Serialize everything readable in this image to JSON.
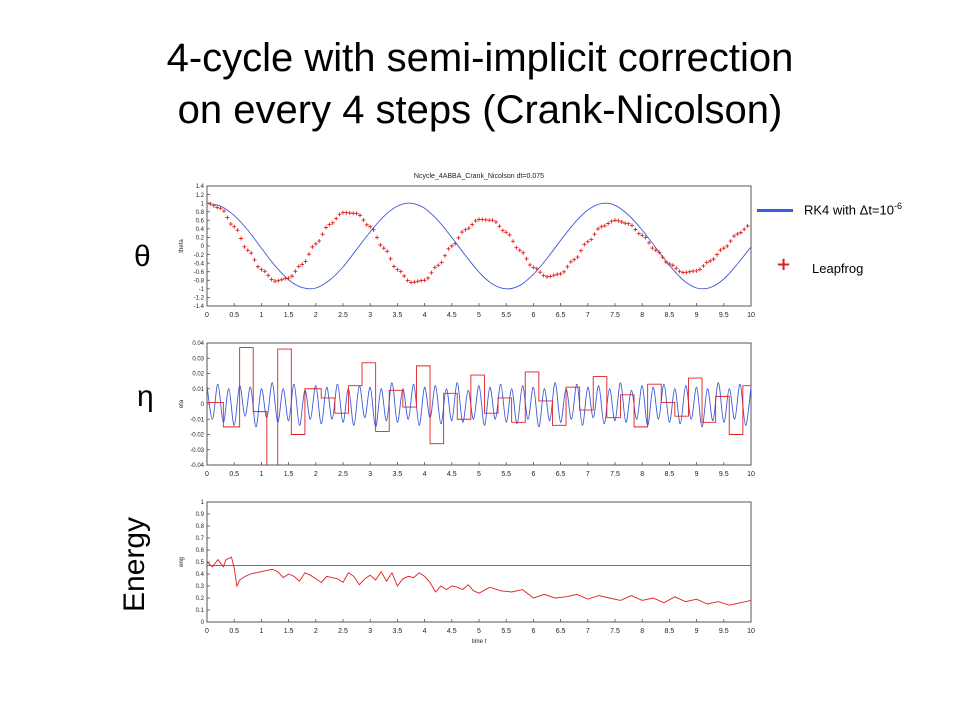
{
  "slide": {
    "title_line1": "4-cycle with semi-implicit correction",
    "title_line2": "on every 4 steps (Crank-Nicolson)",
    "label_theta": "θ",
    "label_eta": "η",
    "label_energy": "Energy"
  },
  "legend": {
    "rk4_text": "RK4 with Δt=10",
    "rk4_exponent": "-6",
    "leapfrog_text": "Leapfrog",
    "rk4_color": "#3d5ad8",
    "leapfrog_color": "#e02020"
  },
  "chart_data": [
    {
      "type": "line",
      "title": "Ncycle_4ABBA_Crank_Nicolson dt=0.075",
      "ylabel": "theta",
      "xlim": [
        0,
        10
      ],
      "ylim": [
        -1.4,
        1.4
      ],
      "xticks": [
        "0",
        "0.5",
        "1",
        "1.5",
        "2",
        "2.5",
        "3",
        "3.5",
        "4",
        "4.5",
        "5",
        "5.5",
        "6",
        "6.5",
        "7",
        "7.5",
        "8",
        "8.5",
        "9",
        "9.5",
        "10"
      ],
      "yticks": [
        "1.4",
        "1.2",
        "1",
        "0.8",
        "0.6",
        "0.4",
        "0.2",
        "0",
        "-0.2",
        "-0.4",
        "-0.6",
        "-0.8",
        "-1",
        "-1.2",
        "-1.4"
      ],
      "series": [
        {
          "name": "RK4 with Δt=10-6",
          "style": "line",
          "color": "#3d5ad8",
          "x": [
            0,
            0.25,
            0.5,
            0.75,
            1,
            1.25,
            1.5,
            1.75,
            2,
            2.25,
            2.5,
            2.75,
            3,
            3.25,
            3.5,
            3.75,
            4,
            4.25,
            4.5,
            4.75,
            5,
            5.25,
            5.5,
            5.75,
            6,
            6.25,
            6.5,
            6.75,
            7,
            7.25,
            7.5,
            7.75,
            8,
            8.25,
            8.5,
            8.75,
            9,
            9.25,
            9.5,
            9.75,
            10
          ],
          "y": [
            1,
            0.93,
            0.71,
            0.37,
            -0.05,
            -0.46,
            -0.79,
            -0.97,
            -0.98,
            -0.8,
            -0.49,
            -0.08,
            0.33,
            0.69,
            0.93,
            1,
            0.88,
            0.59,
            0.2,
            -0.22,
            -0.61,
            -0.89,
            -1,
            -0.92,
            -0.66,
            -0.29,
            0.13,
            0.53,
            0.84,
            0.99,
            0.95,
            0.72,
            0.37,
            -0.04,
            -0.45,
            -0.79,
            -0.98,
            -0.97,
            -0.77,
            -0.42,
            -0.02
          ]
        },
        {
          "name": "Leapfrog",
          "style": "marker-plus",
          "color": "#e02020",
          "x": [
            0,
            0.25,
            0.5,
            0.75,
            1,
            1.25,
            1.5,
            1.75,
            2,
            2.25,
            2.5,
            2.75,
            3,
            3.25,
            3.5,
            3.75,
            4,
            4.25,
            4.5,
            4.75,
            5,
            5.25,
            5.5,
            5.75,
            6,
            6.25,
            6.5,
            6.75,
            7,
            7.25,
            7.5,
            7.75,
            8,
            8.25,
            8.5,
            8.75,
            9,
            9.25,
            9.5,
            9.75,
            10
          ],
          "y": [
            1,
            0.88,
            0.45,
            -0.1,
            -0.55,
            -0.82,
            -0.75,
            -0.43,
            0.05,
            0.5,
            0.78,
            0.76,
            0.45,
            -0.05,
            -0.55,
            -0.85,
            -0.8,
            -0.45,
            0,
            0.38,
            0.62,
            0.6,
            0.32,
            -0.1,
            -0.5,
            -0.72,
            -0.65,
            -0.32,
            0.1,
            0.45,
            0.6,
            0.52,
            0.25,
            -0.1,
            -0.42,
            -0.62,
            -0.58,
            -0.35,
            -0.05,
            0.28,
            0.5
          ]
        }
      ]
    },
    {
      "type": "line",
      "title": "",
      "ylabel": "eta",
      "xlim": [
        0,
        10
      ],
      "ylim": [
        -0.04,
        0.04
      ],
      "xticks": [
        "0",
        "0.5",
        "1",
        "1.5",
        "2",
        "2.5",
        "3",
        "3.5",
        "4",
        "4.5",
        "5",
        "5.5",
        "6",
        "6.5",
        "7",
        "7.5",
        "8",
        "8.5",
        "9",
        "9.5",
        "10"
      ],
      "yticks": [
        "0.04",
        "0.03",
        "0.02",
        "0.01",
        "0",
        "-0.01",
        "-0.02",
        "-0.03",
        "-0.04"
      ],
      "series": [
        {
          "name": "RK4 with Δt=10-6",
          "style": "line",
          "color": "#3d5ad8",
          "x": [
            0,
            0.1,
            0.2,
            0.3,
            0.4,
            0.5,
            0.6,
            0.7,
            0.8,
            0.9,
            1,
            1.1,
            1.2,
            1.3,
            1.4,
            1.5,
            1.6,
            1.7,
            1.8,
            1.9,
            2,
            2.1,
            2.2,
            2.3,
            2.4,
            2.5,
            2.6,
            2.7,
            2.8,
            2.9,
            3,
            3.1,
            3.2,
            3.3,
            3.4,
            3.5,
            3.6,
            3.7,
            3.8,
            3.9,
            4,
            4.1,
            4.2,
            4.3,
            4.4,
            4.5,
            4.6,
            4.7,
            4.8,
            4.9,
            5,
            5.1,
            5.2,
            5.3,
            5.4,
            5.5,
            5.6,
            5.7,
            5.8,
            5.9,
            6,
            6.1,
            6.2,
            6.3,
            6.4,
            6.5,
            6.6,
            6.7,
            6.8,
            6.9,
            7,
            7.1,
            7.2,
            7.3,
            7.4,
            7.5,
            7.6,
            7.7,
            7.8,
            7.9,
            8,
            8.1,
            8.2,
            8.3,
            8.4,
            8.5,
            8.6,
            8.7,
            8.8,
            8.9,
            9,
            9.1,
            9.2,
            9.3,
            9.4,
            9.5,
            9.6,
            9.7,
            9.8,
            9.9,
            10
          ],
          "y": [
            0.012,
            -0.01,
            0.013,
            -0.012,
            0.01,
            -0.014,
            0.012,
            -0.008,
            0.011,
            -0.015,
            0.01,
            -0.009,
            0.014,
            -0.012,
            0.01,
            -0.011,
            0.013,
            -0.014,
            0.009,
            -0.01,
            0.012,
            -0.013,
            0.011,
            -0.01,
            0.013,
            -0.012,
            0.01,
            -0.014,
            0.012,
            -0.009,
            0.011,
            -0.015,
            0.01,
            -0.011,
            0.014,
            -0.012,
            0.01,
            -0.01,
            0.013,
            -0.014,
            0.011,
            -0.009,
            0.012,
            -0.013,
            0.01,
            -0.011,
            0.014,
            -0.012,
            0.009,
            -0.01,
            0.012,
            -0.014,
            0.011,
            -0.01,
            0.013,
            -0.012,
            0.01,
            -0.013,
            0.012,
            -0.01,
            0.011,
            -0.015,
            0.01,
            -0.011,
            0.014,
            -0.012,
            0.01,
            -0.01,
            0.013,
            -0.014,
            0.011,
            -0.009,
            0.012,
            -0.013,
            0.01,
            -0.011,
            0.014,
            -0.012,
            0.009,
            -0.01,
            0.012,
            -0.014,
            0.011,
            -0.01,
            0.013,
            -0.012,
            0.01,
            -0.013,
            0.012,
            -0.01,
            0.011,
            -0.015,
            0.01,
            -0.011,
            0.014,
            -0.012,
            0.01,
            -0.01,
            0.013,
            -0.014,
            0.011
          ]
        },
        {
          "name": "Leapfrog",
          "style": "line",
          "color": "#e02020",
          "x": [
            0,
            0.3,
            0.3,
            0.6,
            0.6,
            0.85,
            0.85,
            1.1,
            1.1,
            1.3,
            1.3,
            1.55,
            1.55,
            1.8,
            1.8,
            2.1,
            2.1,
            2.35,
            2.35,
            2.6,
            2.6,
            2.85,
            2.85,
            3.1,
            3.1,
            3.35,
            3.35,
            3.6,
            3.6,
            3.85,
            3.85,
            4.1,
            4.1,
            4.35,
            4.35,
            4.6,
            4.6,
            4.85,
            4.85,
            5.1,
            5.1,
            5.35,
            5.35,
            5.6,
            5.6,
            5.85,
            5.85,
            6.1,
            6.1,
            6.35,
            6.35,
            6.6,
            6.6,
            6.85,
            6.85,
            7.1,
            7.1,
            7.35,
            7.35,
            7.6,
            7.6,
            7.85,
            7.85,
            8.1,
            8.1,
            8.35,
            8.35,
            8.6,
            8.6,
            8.85,
            8.85,
            9.1,
            9.1,
            9.35,
            9.35,
            9.6,
            9.6,
            9.85,
            9.85,
            10
          ],
          "y": [
            0.001,
            0.001,
            -0.015,
            -0.015,
            0.037,
            0.037,
            -0.005,
            -0.005,
            -0.042,
            -0.042,
            0.036,
            0.036,
            -0.02,
            -0.02,
            0.01,
            0.01,
            0.004,
            0.004,
            -0.006,
            -0.006,
            0.012,
            0.012,
            0.027,
            0.027,
            -0.018,
            -0.018,
            0.009,
            0.009,
            -0.002,
            -0.002,
            0.025,
            0.025,
            -0.026,
            -0.026,
            0.007,
            0.007,
            -0.01,
            -0.01,
            0.019,
            0.019,
            -0.006,
            -0.006,
            0.004,
            0.004,
            -0.012,
            -0.012,
            0.021,
            0.021,
            0.002,
            0.002,
            -0.014,
            -0.014,
            0.011,
            0.011,
            -0.004,
            -0.004,
            0.018,
            0.018,
            -0.009,
            -0.009,
            0.006,
            0.006,
            -0.015,
            -0.015,
            0.013,
            0.013,
            0.001,
            0.001,
            -0.008,
            -0.008,
            0.017,
            0.017,
            -0.012,
            -0.012,
            0.005,
            0.005,
            -0.02,
            -0.02,
            0.012,
            0.012
          ]
        }
      ]
    },
    {
      "type": "line",
      "title": "",
      "ylabel": "eng",
      "xlabel": "time t",
      "xlim": [
        0,
        10
      ],
      "ylim": [
        0,
        1
      ],
      "xticks": [
        "0",
        "0.5",
        "1",
        "1.5",
        "2",
        "2.5",
        "3",
        "3.5",
        "4",
        "4.5",
        "5",
        "5.5",
        "6",
        "6.5",
        "7",
        "7.5",
        "8",
        "8.5",
        "9",
        "9.5",
        "10"
      ],
      "yticks": [
        "1",
        "0.9",
        "0.8",
        "0.7",
        "0.6",
        "0.5",
        "0.4",
        "0.3",
        "0.2",
        "0.1",
        "0"
      ],
      "series": [
        {
          "name": "RK4 with Δt=10-6",
          "style": "line",
          "color": "#3d5ad8",
          "x": [
            0,
            10
          ],
          "y": [
            0.47,
            0.47
          ]
        },
        {
          "name": "Leapfrog",
          "style": "line",
          "color": "#e02020",
          "x": [
            0,
            0.1,
            0.2,
            0.3,
            0.35,
            0.45,
            0.5,
            0.55,
            0.6,
            0.7,
            0.8,
            0.9,
            1,
            1.1,
            1.2,
            1.3,
            1.4,
            1.5,
            1.6,
            1.7,
            1.8,
            1.9,
            2,
            2.1,
            2.2,
            2.3,
            2.4,
            2.5,
            2.6,
            2.7,
            2.8,
            2.9,
            3,
            3.1,
            3.2,
            3.3,
            3.4,
            3.5,
            3.6,
            3.7,
            3.8,
            3.9,
            4,
            4.1,
            4.2,
            4.3,
            4.4,
            4.5,
            4.6,
            4.7,
            4.8,
            4.9,
            5,
            5.2,
            5.4,
            5.6,
            5.8,
            6,
            6.2,
            6.4,
            6.6,
            6.8,
            7,
            7.2,
            7.4,
            7.6,
            7.8,
            8,
            8.2,
            8.4,
            8.6,
            8.8,
            9,
            9.2,
            9.4,
            9.6,
            9.8,
            10
          ],
          "y": [
            0.5,
            0.46,
            0.52,
            0.46,
            0.52,
            0.54,
            0.45,
            0.3,
            0.35,
            0.38,
            0.4,
            0.41,
            0.42,
            0.43,
            0.44,
            0.42,
            0.37,
            0.4,
            0.38,
            0.34,
            0.41,
            0.39,
            0.36,
            0.33,
            0.38,
            0.37,
            0.36,
            0.33,
            0.41,
            0.38,
            0.31,
            0.36,
            0.39,
            0.35,
            0.42,
            0.34,
            0.41,
            0.3,
            0.36,
            0.38,
            0.37,
            0.41,
            0.38,
            0.33,
            0.25,
            0.3,
            0.27,
            0.3,
            0.29,
            0.27,
            0.31,
            0.26,
            0.24,
            0.29,
            0.26,
            0.25,
            0.27,
            0.2,
            0.23,
            0.2,
            0.21,
            0.23,
            0.19,
            0.22,
            0.2,
            0.18,
            0.22,
            0.18,
            0.2,
            0.16,
            0.21,
            0.17,
            0.19,
            0.15,
            0.17,
            0.14,
            0.16,
            0.18
          ]
        }
      ]
    }
  ]
}
